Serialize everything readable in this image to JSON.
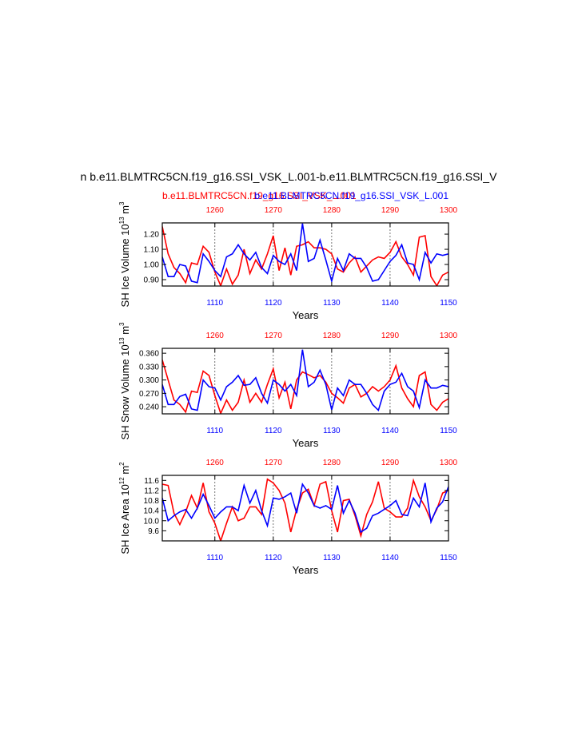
{
  "chart_data": [
    {
      "type": "line",
      "title": "n b.e11.BLMTRC5CN.f19_g16.SSI_VSK_L.001-b.e11.BLMTRC5CN.f19_g16.SSI_V",
      "ylabel": [
        "SH Ice Volume 10",
        "13",
        " m",
        "3"
      ],
      "xlabel": "Years",
      "x": [
        1101,
        1102,
        1103,
        1104,
        1105,
        1106,
        1107,
        1108,
        1109,
        1110,
        1111,
        1112,
        1113,
        1114,
        1115,
        1116,
        1117,
        1118,
        1119,
        1120,
        1121,
        1122,
        1123,
        1124,
        1125,
        1126,
        1127,
        1128,
        1129,
        1130,
        1131,
        1132,
        1133,
        1134,
        1135,
        1136,
        1137,
        1138,
        1139,
        1140,
        1141,
        1142,
        1143,
        1144,
        1145,
        1146,
        1147,
        1148,
        1149,
        1150
      ],
      "x2": [
        1251,
        1252,
        1253,
        1254,
        1255,
        1256,
        1257,
        1258,
        1259,
        1260,
        1261,
        1262,
        1263,
        1264,
        1265,
        1266,
        1267,
        1268,
        1269,
        1270,
        1271,
        1272,
        1273,
        1274,
        1275,
        1276,
        1277,
        1278,
        1279,
        1280,
        1281,
        1282,
        1283,
        1284,
        1285,
        1286,
        1287,
        1288,
        1289,
        1290,
        1291,
        1292,
        1293,
        1294,
        1295,
        1296,
        1297,
        1298,
        1299,
        1300
      ],
      "xlim": [
        1101,
        1150
      ],
      "xticks": [
        1110,
        1120,
        1130,
        1140,
        1150
      ],
      "xtick_color": "#0000ff",
      "x2lim": [
        1251,
        1300
      ],
      "x2ticks": [
        1260,
        1270,
        1280,
        1290,
        1300
      ],
      "x2tick_color": "#ff0000",
      "ylim": [
        0.858,
        1.274
      ],
      "yticks": [
        {
          "value": 1.2,
          "label": "1.20"
        },
        {
          "value": 1.1,
          "label": "1.10"
        },
        {
          "value": 1.0,
          "label": "1.00"
        },
        {
          "value": 0.9,
          "label": "0.90"
        }
      ],
      "grid": "x-dashed",
      "series": [
        {
          "name": "b.e11.BLMTRC5CN.f19_g16.SSI_VSK_L.001",
          "color": "#ff0000",
          "axis": "x2",
          "values": [
            1.25,
            1.07,
            0.98,
            0.94,
            0.88,
            1.01,
            1.0,
            1.12,
            1.08,
            0.95,
            0.86,
            0.97,
            0.87,
            0.93,
            1.1,
            0.94,
            1.03,
            0.97,
            1.07,
            1.19,
            0.96,
            1.11,
            0.93,
            1.12,
            1.13,
            1.15,
            1.11,
            1.11,
            1.1,
            1.07,
            0.97,
            0.95,
            1.01,
            1.05,
            0.95,
            0.99,
            1.03,
            1.05,
            1.04,
            1.08,
            1.15,
            1.05,
            1.0,
            0.93,
            1.18,
            1.19,
            0.92,
            0.86,
            0.93,
            0.95
          ]
        },
        {
          "name": "b.e11.BLMTRC5CN.f19_g16.SSI_VSK_L.001",
          "color": "#0000ff",
          "axis": "x",
          "values": [
            1.05,
            0.92,
            0.92,
            1.0,
            0.99,
            0.89,
            0.88,
            1.07,
            1.02,
            0.96,
            0.92,
            1.05,
            1.07,
            1.13,
            1.07,
            1.03,
            1.08,
            0.98,
            0.94,
            1.06,
            1.02,
            1.0,
            1.07,
            0.96,
            1.27,
            1.02,
            1.04,
            1.16,
            1.03,
            0.89,
            1.04,
            0.96,
            1.07,
            1.04,
            1.04,
            0.98,
            0.89,
            0.9,
            0.96,
            1.02,
            1.06,
            1.13,
            1.01,
            1.0,
            0.9,
            1.08,
            1.01,
            1.07,
            1.06,
            1.07
          ]
        }
      ]
    },
    {
      "type": "line",
      "ylabel": [
        "SH Snow Volume 10",
        "13",
        " m",
        "3"
      ],
      "xlabel": "Years",
      "x": [
        1101,
        1102,
        1103,
        1104,
        1105,
        1106,
        1107,
        1108,
        1109,
        1110,
        1111,
        1112,
        1113,
        1114,
        1115,
        1116,
        1117,
        1118,
        1119,
        1120,
        1121,
        1122,
        1123,
        1124,
        1125,
        1126,
        1127,
        1128,
        1129,
        1130,
        1131,
        1132,
        1133,
        1134,
        1135,
        1136,
        1137,
        1138,
        1139,
        1140,
        1141,
        1142,
        1143,
        1144,
        1145,
        1146,
        1147,
        1148,
        1149,
        1150
      ],
      "x2": [
        1251,
        1252,
        1253,
        1254,
        1255,
        1256,
        1257,
        1258,
        1259,
        1260,
        1261,
        1262,
        1263,
        1264,
        1265,
        1266,
        1267,
        1268,
        1269,
        1270,
        1271,
        1272,
        1273,
        1274,
        1275,
        1276,
        1277,
        1278,
        1279,
        1280,
        1281,
        1282,
        1283,
        1284,
        1285,
        1286,
        1287,
        1288,
        1289,
        1290,
        1291,
        1292,
        1293,
        1294,
        1295,
        1296,
        1297,
        1298,
        1299,
        1300
      ],
      "xlim": [
        1101,
        1150
      ],
      "xticks": [
        1110,
        1120,
        1130,
        1140,
        1150
      ],
      "xtick_color": "#0000ff",
      "x2lim": [
        1251,
        1300
      ],
      "x2ticks": [
        1260,
        1270,
        1280,
        1290,
        1300
      ],
      "x2tick_color": "#ff0000",
      "ylim": [
        0.224,
        0.371
      ],
      "yticks": [
        {
          "value": 0.36,
          "label": "0.360"
        },
        {
          "value": 0.33,
          "label": "0.330"
        },
        {
          "value": 0.3,
          "label": "0.300"
        },
        {
          "value": 0.27,
          "label": "0.270"
        },
        {
          "value": 0.24,
          "label": "0.240"
        }
      ],
      "grid": "x-dashed",
      "series": [
        {
          "color": "#ff0000",
          "axis": "x2",
          "values": [
            0.345,
            0.3,
            0.255,
            0.245,
            0.228,
            0.275,
            0.272,
            0.32,
            0.31,
            0.265,
            0.225,
            0.255,
            0.232,
            0.25,
            0.3,
            0.25,
            0.27,
            0.25,
            0.29,
            0.325,
            0.26,
            0.295,
            0.235,
            0.3,
            0.318,
            0.312,
            0.305,
            0.31,
            0.295,
            0.27,
            0.26,
            0.248,
            0.282,
            0.29,
            0.262,
            0.27,
            0.285,
            0.275,
            0.285,
            0.3,
            0.332,
            0.282,
            0.258,
            0.24,
            0.31,
            0.318,
            0.245,
            0.232,
            0.25,
            0.258
          ]
        },
        {
          "color": "#0000ff",
          "axis": "x",
          "values": [
            0.29,
            0.245,
            0.245,
            0.263,
            0.268,
            0.235,
            0.232,
            0.3,
            0.285,
            0.282,
            0.255,
            0.285,
            0.295,
            0.31,
            0.288,
            0.29,
            0.305,
            0.27,
            0.248,
            0.3,
            0.29,
            0.275,
            0.29,
            0.265,
            0.368,
            0.285,
            0.295,
            0.322,
            0.29,
            0.233,
            0.282,
            0.265,
            0.3,
            0.29,
            0.29,
            0.27,
            0.245,
            0.232,
            0.275,
            0.29,
            0.295,
            0.315,
            0.285,
            0.275,
            0.238,
            0.3,
            0.282,
            0.282,
            0.288,
            0.285
          ]
        }
      ]
    },
    {
      "type": "line",
      "ylabel": [
        "SH Ice Area 10",
        "12",
        " m",
        "2"
      ],
      "xlabel": "Years",
      "x": [
        1101,
        1102,
        1103,
        1104,
        1105,
        1106,
        1107,
        1108,
        1109,
        1110,
        1111,
        1112,
        1113,
        1114,
        1115,
        1116,
        1117,
        1118,
        1119,
        1120,
        1121,
        1122,
        1123,
        1124,
        1125,
        1126,
        1127,
        1128,
        1129,
        1130,
        1131,
        1132,
        1133,
        1134,
        1135,
        1136,
        1137,
        1138,
        1139,
        1140,
        1141,
        1142,
        1143,
        1144,
        1145,
        1146,
        1147,
        1148,
        1149,
        1150
      ],
      "x2": [
        1251,
        1252,
        1253,
        1254,
        1255,
        1256,
        1257,
        1258,
        1259,
        1260,
        1261,
        1262,
        1263,
        1264,
        1265,
        1266,
        1267,
        1268,
        1269,
        1270,
        1271,
        1272,
        1273,
        1274,
        1275,
        1276,
        1277,
        1278,
        1279,
        1280,
        1281,
        1282,
        1283,
        1284,
        1285,
        1286,
        1287,
        1288,
        1289,
        1290,
        1291,
        1292,
        1293,
        1294,
        1295,
        1296,
        1297,
        1298,
        1299,
        1300
      ],
      "xlim": [
        1101,
        1150
      ],
      "xticks": [
        1110,
        1120,
        1130,
        1140,
        1150
      ],
      "xtick_color": "#0000ff",
      "x2lim": [
        1251,
        1300
      ],
      "x2ticks": [
        1260,
        1270,
        1280,
        1290,
        1300
      ],
      "x2tick_color": "#ff0000",
      "ylim": [
        9.2,
        11.8
      ],
      "yticks": [
        11.6,
        11.2,
        10.8,
        10.4,
        {
          "value": 10.0,
          "label": "10.0"
        },
        9.6
      ],
      "grid": "x-dashed",
      "series": [
        {
          "color": "#ff0000",
          "axis": "x2",
          "values": [
            11.45,
            11.4,
            10.3,
            9.85,
            10.35,
            11.0,
            10.5,
            11.5,
            10.35,
            9.9,
            9.2,
            9.9,
            10.55,
            10.0,
            10.1,
            10.55,
            10.55,
            10.25,
            11.65,
            11.5,
            11.2,
            10.7,
            9.55,
            10.45,
            11.1,
            11.25,
            10.6,
            11.45,
            11.55,
            10.4,
            9.55,
            10.8,
            10.85,
            10.2,
            9.4,
            10.25,
            10.75,
            11.55,
            10.5,
            10.35,
            10.15,
            10.15,
            10.5,
            11.6,
            10.95,
            10.55,
            10.0,
            10.45,
            11.1,
            11.2
          ]
        },
        {
          "color": "#0000ff",
          "axis": "x",
          "values": [
            10.9,
            10.0,
            10.2,
            10.35,
            10.45,
            10.1,
            10.5,
            11.05,
            10.6,
            10.1,
            10.35,
            10.55,
            10.55,
            10.4,
            11.4,
            10.7,
            11.2,
            10.4,
            9.8,
            10.9,
            10.85,
            10.95,
            11.1,
            10.3,
            11.45,
            11.1,
            10.6,
            10.5,
            10.6,
            10.45,
            11.4,
            10.3,
            10.8,
            10.3,
            9.55,
            9.7,
            10.2,
            10.3,
            10.45,
            10.6,
            10.8,
            10.25,
            10.2,
            10.9,
            10.55,
            11.5,
            9.95,
            10.5,
            10.75,
            11.35
          ]
        }
      ]
    }
  ]
}
